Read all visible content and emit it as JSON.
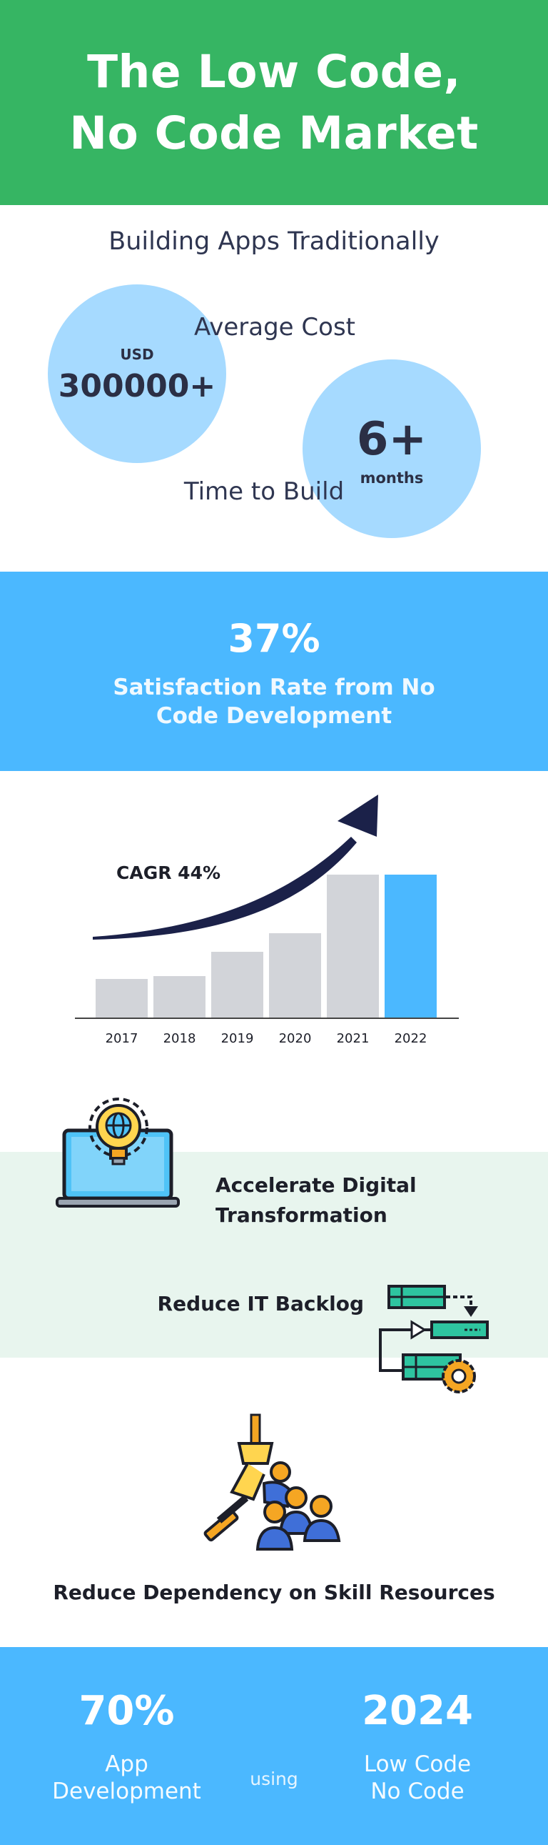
{
  "header": {
    "title_line1": "The Low Code,",
    "title_line2": "No Code Market"
  },
  "traditional": {
    "heading": "Building Apps Traditionally",
    "cost_label": "Average Cost",
    "cost_currency": "USD",
    "cost_value": "300000+",
    "time_label": "Time to Build",
    "time_value": "6+",
    "time_unit": "months"
  },
  "satisfaction": {
    "value": "37%",
    "label_line1": "Satisfaction Rate from No",
    "label_line2": "Code Development"
  },
  "chart_data": {
    "type": "bar",
    "categories": [
      "2017",
      "2018",
      "2019",
      "2020",
      "2021",
      "2022"
    ],
    "values": [
      27,
      29,
      46,
      59,
      100,
      100
    ],
    "ylim": [
      0,
      100
    ],
    "annotation": "CAGR 44%",
    "grid": false,
    "colors": {
      "bar": "#d2d4d9",
      "highlight_bar": "#4bb8ff",
      "arrow": "#1b2149",
      "axis": "#444444"
    },
    "highlight_index": 5
  },
  "benefits": {
    "digital_line1": "Accelerate Digital",
    "digital_line2": "Transformation",
    "backlog": "Reduce IT Backlog",
    "skill": "Reduce Dependency on Skill Resources"
  },
  "icons": {
    "digital": "laptop-lightbulb-globe-icon",
    "backlog": "workflow-process-gear-icon",
    "skill": "robot-arm-people-icon"
  },
  "bottom": {
    "percent": "70%",
    "percent_label_line1": "App",
    "percent_label_line2": "Development",
    "connector": "using",
    "year": "2024",
    "year_label_line1": "Low Code",
    "year_label_line2": "No Code"
  },
  "colors": {
    "green": "#36b563",
    "blue": "#4bb8ff",
    "light_blue": "#a6daff",
    "mint": "#e8f5ee"
  }
}
